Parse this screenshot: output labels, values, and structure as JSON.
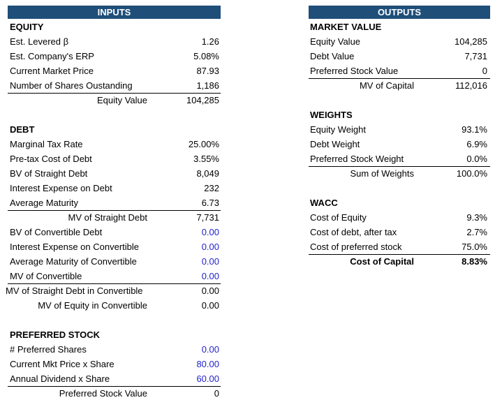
{
  "inputs": {
    "header": "INPUTS",
    "equity": {
      "title": "EQUITY",
      "rows": [
        {
          "label": "Est. Levered β",
          "value": "1.26"
        },
        {
          "label": "Est. Company's ERP",
          "value": "5.08%"
        },
        {
          "label": "Current Market Price",
          "value": "87.93"
        },
        {
          "label": "Number of Shares Oustanding",
          "value": "1,186"
        }
      ],
      "total": {
        "label": "Equity Value",
        "value": "104,285"
      }
    },
    "debt": {
      "title": "DEBT",
      "rows": [
        {
          "label": "Marginal Tax Rate",
          "value": "25.00%"
        },
        {
          "label": "Pre-tax Cost of Debt",
          "value": "3.55%"
        },
        {
          "label": "BV of Straight Debt",
          "value": "8,049"
        },
        {
          "label": "Interest Expense on Debt",
          "value": "232"
        },
        {
          "label": "Average Maturity",
          "value": "6.73"
        }
      ],
      "mv_straight": {
        "label": "MV of Straight Debt",
        "value": "7,731"
      },
      "convertible": [
        {
          "label": "BV of Convertible Debt",
          "value": "0.00"
        },
        {
          "label": "Interest Expense on Convertible",
          "value": "0.00"
        },
        {
          "label": "Average Maturity of Convertible",
          "value": "0.00"
        },
        {
          "label": "MV of Convertible",
          "value": "0.00"
        }
      ],
      "mv_straight_in_conv": {
        "label": "MV of Straight Debt in Convertible",
        "value": "0.00"
      },
      "mv_equity_in_conv": {
        "label": "MV of Equity in Convertible",
        "value": "0.00"
      }
    },
    "preferred": {
      "title": "PREFERRED STOCK",
      "rows": [
        {
          "label": "# Preferred Shares",
          "value": "0.00"
        },
        {
          "label": "Current Mkt Price x Share",
          "value": "80.00"
        },
        {
          "label": "Annual Dividend x Share",
          "value": "60.00"
        }
      ],
      "total": {
        "label": "Preferred Stock Value",
        "value": "0"
      }
    }
  },
  "outputs": {
    "header": "OUTPUTS",
    "market_value": {
      "title": "MARKET VALUE",
      "rows": [
        {
          "label": "Equity Value",
          "value": "104,285"
        },
        {
          "label": "Debt Value",
          "value": "7,731"
        },
        {
          "label": "Preferred Stock Value",
          "value": "0"
        }
      ],
      "total": {
        "label": "MV of Capital",
        "value": "112,016"
      }
    },
    "weights": {
      "title": "WEIGHTS",
      "rows": [
        {
          "label": "Equity Weight",
          "value": "93.1%"
        },
        {
          "label": "Debt Weight",
          "value": "6.9%"
        },
        {
          "label": "Preferred Stock Weight",
          "value": "0.0%"
        }
      ],
      "total": {
        "label": "Sum of Weights",
        "value": "100.0%"
      }
    },
    "wacc": {
      "title": "WACC",
      "rows": [
        {
          "label": "Cost of Equity",
          "value": "9.3%"
        },
        {
          "label": "Cost of debt, after tax",
          "value": "2.7%"
        },
        {
          "label": "Cost of preferred stock",
          "value": "75.0%"
        }
      ],
      "total": {
        "label": "Cost of Capital",
        "value": "8.83%"
      }
    }
  },
  "colors": {
    "header_bg": "#1f4e79",
    "input_blue": "#1f1fcc"
  }
}
